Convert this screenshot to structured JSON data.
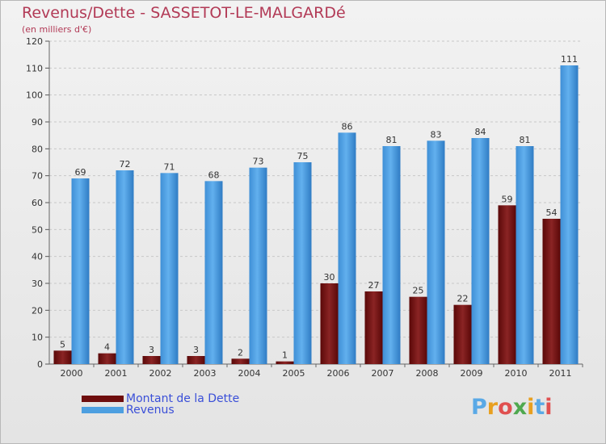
{
  "header": {
    "title": "Revenus/Dette - SASSETOT-LE-MALGARDé",
    "subtitle": "(en milliers d'€)"
  },
  "chart_data": {
    "type": "bar",
    "title": "Revenus/Dette - SASSETOT-LE-MALGARDé",
    "subtitle": "(en milliers d'€)",
    "categories": [
      "2000",
      "2001",
      "2002",
      "2003",
      "2004",
      "2005",
      "2006",
      "2007",
      "2008",
      "2009",
      "2010",
      "2011"
    ],
    "series": [
      {
        "name": "Montant de la Dette",
        "values": [
          5,
          4,
          3,
          3,
          2,
          1,
          30,
          27,
          25,
          22,
          59,
          54
        ],
        "color": "#7a1010"
      },
      {
        "name": "Revenus",
        "values": [
          69,
          72,
          71,
          68,
          73,
          75,
          86,
          81,
          83,
          84,
          81,
          111
        ],
        "color": "#4d9fe0"
      }
    ],
    "ylim": [
      0,
      120
    ],
    "yticks": [
      0,
      10,
      20,
      30,
      40,
      50,
      60,
      70,
      80,
      90,
      100,
      110,
      120
    ],
    "grid": true,
    "legend": "bottom-left"
  },
  "legend": {
    "items": [
      {
        "label": "Montant de la Dette",
        "color": "#6e0d0d"
      },
      {
        "label": "Revenus",
        "color": "#4d9fe0"
      }
    ]
  },
  "logo": {
    "letters": [
      "P",
      "r",
      "o",
      "x",
      "i",
      "t",
      "i"
    ],
    "colors": [
      "#5aa9e6",
      "#e8a020",
      "#e05050",
      "#4fa84f",
      "#e8a020",
      "#5aa9e6",
      "#e05050"
    ]
  }
}
